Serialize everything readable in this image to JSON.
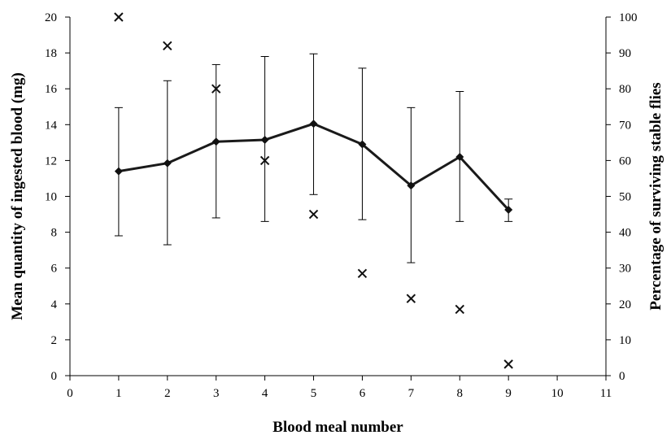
{
  "chart_data": {
    "type": "line",
    "xlabel": "Blood meal number",
    "ylabel_left": "Mean quantity of ingested blood (mg)",
    "ylabel_right": "Percentage of surviving stable flies",
    "xlim": [
      0,
      11
    ],
    "ylim_left": [
      0,
      20
    ],
    "ylim_right": [
      0,
      100
    ],
    "x_ticks": [
      0,
      1,
      2,
      3,
      4,
      5,
      6,
      7,
      8,
      9,
      10,
      11
    ],
    "y_left_ticks": [
      0,
      2,
      4,
      6,
      8,
      10,
      12,
      14,
      16,
      18,
      20
    ],
    "y_right_ticks": [
      0,
      10,
      20,
      30,
      40,
      50,
      60,
      70,
      80,
      90,
      100
    ],
    "grid": false,
    "series": [
      {
        "axis": "left",
        "marker": "diamond",
        "style": "line-with-error-bars",
        "x": [
          1,
          2,
          3,
          4,
          5,
          6,
          7,
          8,
          9
        ],
        "values": [
          11.4,
          11.85,
          13.05,
          13.15,
          14.05,
          12.9,
          10.6,
          12.2,
          9.25
        ],
        "err_low": [
          7.8,
          7.3,
          8.8,
          8.6,
          10.1,
          8.7,
          6.3,
          8.6,
          8.6
        ],
        "err_high": [
          14.95,
          16.45,
          17.35,
          17.8,
          17.95,
          17.15,
          14.95,
          15.85,
          9.85
        ]
      },
      {
        "axis": "right",
        "marker": "cross",
        "style": "scatter",
        "x": [
          1,
          2,
          3,
          4,
          5,
          6,
          7,
          8,
          9
        ],
        "values": [
          100,
          92,
          80,
          60,
          45,
          28.5,
          21.5,
          18.5,
          3.2
        ]
      }
    ]
  }
}
